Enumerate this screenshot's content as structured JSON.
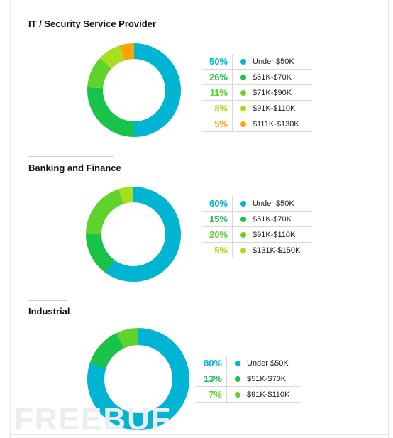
{
  "chart_data": [
    {
      "type": "pie",
      "title": "IT / Security Service Provider",
      "slices": [
        {
          "pct_label": "50%",
          "value": 50,
          "label": "Under $50K",
          "color": "#00b4d4"
        },
        {
          "pct_label": "26%",
          "value": 26,
          "label": "$51K-$70K",
          "color": "#19c249"
        },
        {
          "pct_label": "11%",
          "value": 11,
          "label": "$71K-$90K",
          "color": "#5dd32c"
        },
        {
          "pct_label": "8%",
          "value": 8,
          "label": "$91K-$110K",
          "color": "#a6e01a"
        },
        {
          "pct_label": "5%",
          "value": 5,
          "label": "$111K-$130K",
          "color": "#ffa20a"
        }
      ]
    },
    {
      "type": "pie",
      "title": "Banking and Finance",
      "slices": [
        {
          "pct_label": "60%",
          "value": 60,
          "label": "Under $50K",
          "color": "#00b4d4"
        },
        {
          "pct_label": "15%",
          "value": 15,
          "label": "$51K-$70K",
          "color": "#19c249"
        },
        {
          "pct_label": "20%",
          "value": 20,
          "label": "$91K-$110K",
          "color": "#5dd32c"
        },
        {
          "pct_label": "5%",
          "value": 5,
          "label": "$131K-$150K",
          "color": "#a6e01a"
        }
      ]
    },
    {
      "type": "pie",
      "title": "Industrial",
      "slices": [
        {
          "pct_label": "80%",
          "value": 80,
          "label": "Under $50K",
          "color": "#00b4d4"
        },
        {
          "pct_label": "13%",
          "value": 13,
          "label": "$51K-$70K",
          "color": "#19c249"
        },
        {
          "pct_label": "7%",
          "value": 7,
          "label": "$91K-$110K",
          "color": "#5dd32c"
        }
      ]
    }
  ],
  "watermark": "FREEBUF"
}
